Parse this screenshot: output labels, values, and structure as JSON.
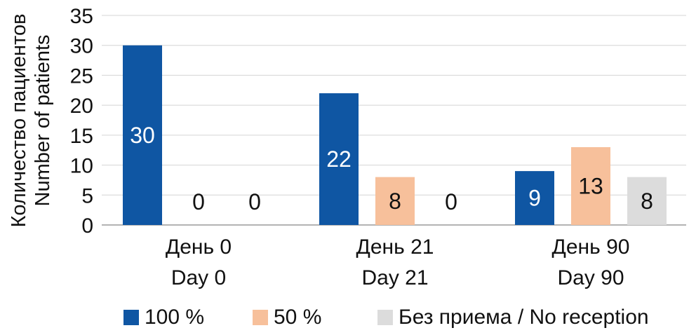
{
  "chart_data": {
    "type": "bar",
    "ylabel": [
      "Количество пациентов",
      "Number of patients"
    ],
    "xlabel": "",
    "categories": [
      [
        "День 0",
        "Day 0"
      ],
      [
        "День 21",
        "Day 21"
      ],
      [
        "День 90",
        "Day 90"
      ]
    ],
    "series": [
      {
        "name": "100 %",
        "color": "#0f56a3",
        "label_color": "#ffffff",
        "values": [
          30,
          22,
          9
        ]
      },
      {
        "name": "50 %",
        "color": "#f7c09b",
        "label_color": "#111111",
        "values": [
          0,
          8,
          13
        ]
      },
      {
        "name": "Без приема / No reception",
        "color": "#dcdcdc",
        "label_color": "#111111",
        "values": [
          0,
          0,
          8
        ]
      }
    ],
    "ylim": [
      0,
      35
    ],
    "yticks": [
      0,
      5,
      10,
      15,
      20,
      25,
      30,
      35
    ],
    "grid": true,
    "legend_position": "bottom",
    "data_labels": true
  }
}
